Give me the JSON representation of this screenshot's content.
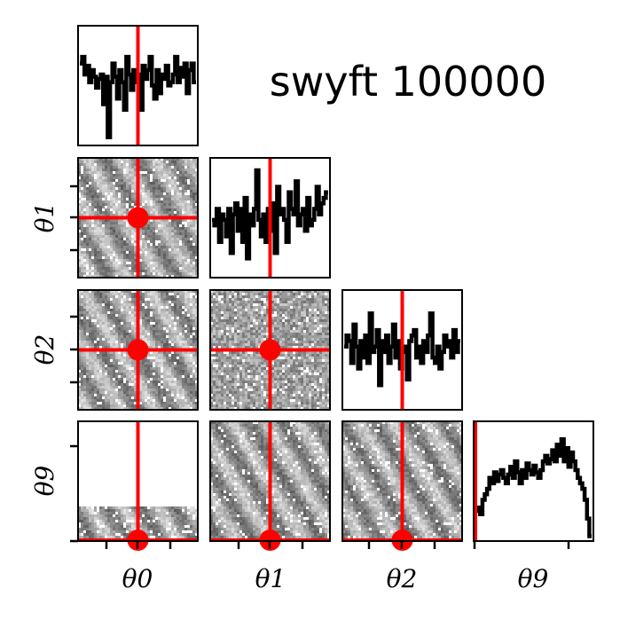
{
  "chart_data": {
    "type": "corner",
    "title": "swyft 100000",
    "parameters": [
      "θ0",
      "θ1",
      "θ2",
      "θ9"
    ],
    "truth_marker_color": "#ff0000",
    "histogram_color": "#000000",
    "y_labels": [
      "θ1",
      "θ2",
      "θ9"
    ],
    "x_labels": [
      "θ0",
      "θ1",
      "θ2",
      "θ9"
    ],
    "truth": [
      0.5,
      0.5,
      0.5,
      0.0
    ],
    "marginals": [
      {
        "param": "θ0",
        "values": [
          0.72,
          0.78,
          0.62,
          0.7,
          0.55,
          0.66,
          0.6,
          0.5,
          0.58,
          0.62,
          0.35,
          0.6,
          0.05,
          0.55,
          0.72,
          0.6,
          0.4,
          0.66,
          0.55,
          0.3,
          0.78,
          0.62,
          0.48,
          0.66,
          0.55,
          0.62,
          0.3,
          0.7,
          0.58,
          0.66,
          0.78,
          0.52,
          0.4,
          0.66,
          0.45,
          0.62,
          0.58,
          0.7,
          0.52,
          0.55,
          0.62,
          0.78,
          0.55,
          0.68,
          0.6,
          0.72,
          0.45,
          0.66,
          0.72,
          0.55
        ]
      },
      {
        "param": "θ1",
        "values": [
          0.5,
          0.45,
          0.6,
          0.3,
          0.55,
          0.5,
          0.35,
          0.6,
          0.2,
          0.55,
          0.65,
          0.4,
          0.6,
          0.3,
          0.7,
          0.15,
          0.55,
          0.45,
          0.6,
          0.95,
          0.5,
          0.35,
          0.55,
          0.3,
          0.6,
          0.4,
          0.65,
          0.2,
          0.8,
          0.55,
          0.6,
          0.5,
          0.3,
          0.75,
          0.6,
          0.55,
          0.85,
          0.45,
          0.55,
          0.6,
          0.4,
          0.7,
          0.45,
          0.5,
          0.6,
          0.8,
          0.55,
          0.65,
          0.7,
          0.75
        ]
      },
      {
        "param": "θ2",
        "values": [
          0.55,
          0.65,
          0.6,
          0.4,
          0.75,
          0.55,
          0.35,
          0.6,
          0.45,
          0.65,
          0.4,
          0.85,
          0.5,
          0.55,
          0.7,
          0.2,
          0.6,
          0.5,
          0.65,
          0.4,
          0.55,
          0.75,
          0.45,
          0.6,
          0.35,
          0.5,
          0.55,
          0.25,
          0.6,
          0.65,
          0.7,
          0.45,
          0.55,
          0.4,
          0.6,
          0.5,
          0.65,
          0.85,
          0.45,
          0.4,
          0.55,
          0.35,
          0.5,
          0.65,
          0.55,
          0.6,
          0.45,
          0.7,
          0.5,
          0.6
        ]
      },
      {
        "param": "θ9",
        "values": [
          0.25,
          0.28,
          0.22,
          0.35,
          0.4,
          0.45,
          0.55,
          0.5,
          0.6,
          0.52,
          0.58,
          0.62,
          0.55,
          0.5,
          0.58,
          0.65,
          0.55,
          0.7,
          0.6,
          0.5,
          0.62,
          0.55,
          0.68,
          0.62,
          0.58,
          0.66,
          0.6,
          0.55,
          0.62,
          0.7,
          0.75,
          0.68,
          0.72,
          0.8,
          0.7,
          0.85,
          0.75,
          0.9,
          0.7,
          0.82,
          0.65,
          0.78,
          0.7,
          0.62,
          0.55,
          0.5,
          0.45,
          0.35,
          0.18,
          0.02
        ]
      }
    ],
    "pairs": [
      {
        "row": "θ1",
        "col": "θ0",
        "style": "diagonal-bands",
        "density": "full"
      },
      {
        "row": "θ2",
        "col": "θ0",
        "style": "diagonal-bands",
        "density": "full"
      },
      {
        "row": "θ2",
        "col": "θ1",
        "style": "noise",
        "density": "full"
      },
      {
        "row": "θ9",
        "col": "θ0",
        "style": "diagonal-bands",
        "density": "bottom-band",
        "band_fraction": 0.28
      },
      {
        "row": "θ9",
        "col": "θ1",
        "style": "diagonal-bands",
        "density": "full"
      },
      {
        "row": "θ9",
        "col": "θ2",
        "style": "diagonal-bands",
        "density": "full"
      }
    ]
  }
}
